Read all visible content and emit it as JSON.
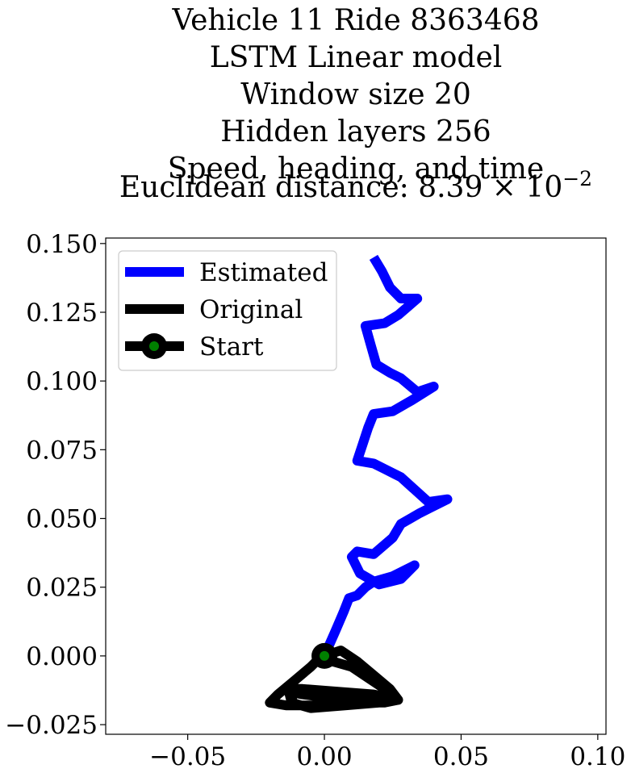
{
  "chart_data": {
    "type": "line",
    "title": [
      "Vehicle 11 Ride 8363468",
      "LSTM Linear model",
      "Window size 20",
      "Hidden layers 256",
      "Speed, heading, and time"
    ],
    "metric": {
      "prefix": "Euclidean distance: ",
      "mantissa": "8.39",
      "times": "×",
      "base": "10",
      "exponent": "−2"
    },
    "xlabel": "",
    "ylabel": "",
    "xlim": [
      -0.08,
      0.103
    ],
    "ylim": [
      -0.0285,
      0.152
    ],
    "x_ticks": [
      -0.05,
      0.0,
      0.05,
      0.1
    ],
    "x_tick_labels": [
      "−0.05",
      "0.00",
      "0.05",
      "0.10"
    ],
    "y_ticks": [
      -0.025,
      0.0,
      0.025,
      0.05,
      0.075,
      0.1,
      0.125,
      0.15
    ],
    "y_tick_labels": [
      "−0.025",
      "0.000",
      "0.025",
      "0.050",
      "0.075",
      "0.100",
      "0.125",
      "0.150"
    ],
    "grid": false,
    "legend_position": "upper-left",
    "series": [
      {
        "name": "Estimated",
        "color": "#0000ff",
        "points": [
          [
            0.0,
            0.0
          ],
          [
            0.004,
            0.009
          ],
          [
            0.007,
            0.016
          ],
          [
            0.009,
            0.021
          ],
          [
            0.012,
            0.022
          ],
          [
            0.015,
            0.025
          ],
          [
            0.018,
            0.027
          ],
          [
            0.025,
            0.029
          ],
          [
            0.033,
            0.033
          ],
          [
            0.028,
            0.028
          ],
          [
            0.02,
            0.026
          ],
          [
            0.013,
            0.03
          ],
          [
            0.01,
            0.036
          ],
          [
            0.012,
            0.038
          ],
          [
            0.018,
            0.037
          ],
          [
            0.025,
            0.043
          ],
          [
            0.028,
            0.048
          ],
          [
            0.035,
            0.052
          ],
          [
            0.045,
            0.057
          ],
          [
            0.038,
            0.056
          ],
          [
            0.028,
            0.065
          ],
          [
            0.026,
            0.066
          ],
          [
            0.022,
            0.068
          ],
          [
            0.018,
            0.07
          ],
          [
            0.012,
            0.071
          ],
          [
            0.014,
            0.077
          ],
          [
            0.016,
            0.083
          ],
          [
            0.018,
            0.088
          ],
          [
            0.025,
            0.089
          ],
          [
            0.032,
            0.093
          ],
          [
            0.04,
            0.098
          ],
          [
            0.034,
            0.096
          ],
          [
            0.028,
            0.101
          ],
          [
            0.024,
            0.103
          ],
          [
            0.019,
            0.106
          ],
          [
            0.017,
            0.113
          ],
          [
            0.015,
            0.12
          ],
          [
            0.022,
            0.121
          ],
          [
            0.027,
            0.124
          ],
          [
            0.034,
            0.13
          ],
          [
            0.028,
            0.13
          ],
          [
            0.024,
            0.134
          ],
          [
            0.021,
            0.14
          ],
          [
            0.018,
            0.145
          ]
        ]
      },
      {
        "name": "Original",
        "color": "#000000",
        "points": [
          [
            0.0,
            0.0
          ],
          [
            0.006,
            0.002
          ],
          [
            0.012,
            -0.002
          ],
          [
            0.018,
            -0.007
          ],
          [
            0.024,
            -0.012
          ],
          [
            0.027,
            -0.016
          ],
          [
            0.022,
            -0.017
          ],
          [
            0.015,
            -0.017
          ],
          [
            0.005,
            -0.018
          ],
          [
            -0.006,
            -0.018
          ],
          [
            -0.014,
            -0.018
          ],
          [
            -0.02,
            -0.017
          ],
          [
            -0.017,
            -0.014
          ],
          [
            -0.011,
            -0.009
          ],
          [
            -0.005,
            -0.004
          ],
          [
            -0.002,
            -0.001
          ],
          [
            0.003,
            -0.002
          ],
          [
            0.01,
            -0.004
          ],
          [
            0.016,
            -0.008
          ],
          [
            0.022,
            -0.012
          ],
          [
            0.026,
            -0.016
          ],
          [
            0.02,
            -0.017
          ],
          [
            0.01,
            -0.016
          ],
          [
            0.0,
            -0.015
          ],
          [
            -0.008,
            -0.014
          ],
          [
            -0.013,
            -0.013
          ],
          [
            -0.012,
            -0.017
          ],
          [
            -0.005,
            -0.019
          ],
          [
            0.008,
            -0.018
          ],
          [
            0.02,
            -0.017
          ],
          [
            0.027,
            -0.016
          ],
          [
            0.018,
            -0.014
          ],
          [
            0.005,
            -0.013
          ],
          [
            -0.008,
            -0.012
          ],
          [
            -0.011,
            -0.012
          ],
          [
            -0.012,
            -0.015
          ],
          [
            -0.011,
            -0.019
          ]
        ]
      }
    ],
    "start": {
      "name": "Start",
      "point": [
        0.0,
        0.0
      ],
      "outer_color": "#000000",
      "inner_color": "#008000"
    }
  }
}
